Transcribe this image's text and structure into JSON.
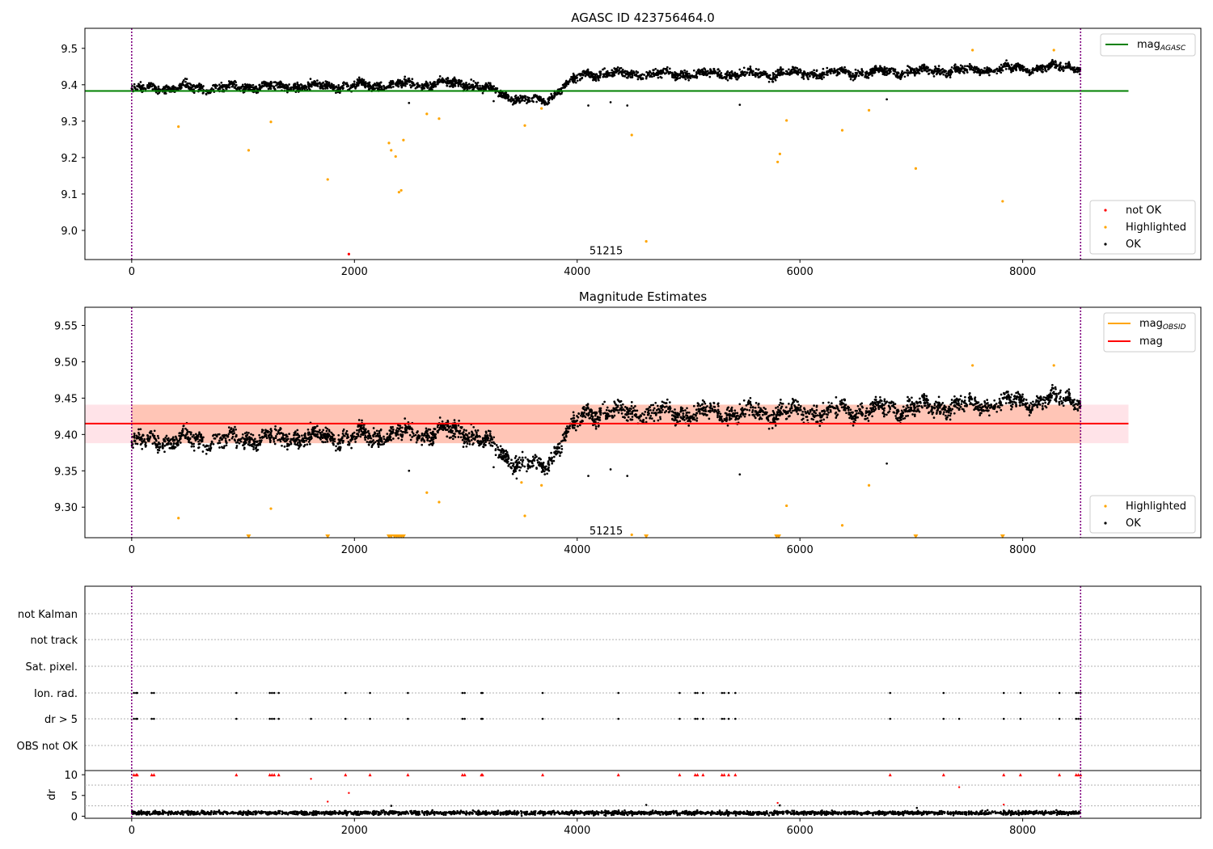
{
  "figure": {
    "background": "#ffffff"
  },
  "chart_data": [
    {
      "type": "scatter",
      "title": "AGASC ID 423756464.0",
      "xlim": [
        -420,
        9600
      ],
      "ylim": [
        8.92,
        9.555
      ],
      "xticks": [
        0,
        2000,
        4000,
        6000,
        8000
      ],
      "yticks": [
        9.0,
        9.1,
        9.2,
        9.3,
        9.4,
        9.5
      ],
      "ytick_labels": [
        "9.0",
        "9.1",
        "9.2",
        "9.3",
        "9.4",
        "9.5"
      ],
      "vlines": [
        0,
        8520
      ],
      "obsid_label": {
        "text": "51215",
        "x": 4260,
        "y": 8.945
      },
      "hline": {
        "name": "mag",
        "subscript": "AGASC",
        "y": 9.383,
        "x_range": [
          -420,
          8950
        ],
        "color": "#008000"
      },
      "series": [
        {
          "name": "OK",
          "color": "#000000",
          "trend": [
            [
              0,
              9.39
            ],
            [
              2000,
              9.397
            ],
            [
              3000,
              9.405
            ],
            [
              3500,
              9.36
            ],
            [
              3700,
              9.355
            ],
            [
              3900,
              9.4
            ],
            [
              4100,
              9.43
            ],
            [
              6000,
              9.43
            ],
            [
              7500,
              9.44
            ],
            [
              8500,
              9.45
            ]
          ],
          "spread": 0.011
        },
        {
          "name": "Highlighted",
          "color": "#ffa500",
          "points": [
            [
              420,
              9.285
            ],
            [
              1050,
              9.22
            ],
            [
              1250,
              9.298
            ],
            [
              1760,
              9.14
            ],
            [
              2310,
              9.24
            ],
            [
              2330,
              9.22
            ],
            [
              2370,
              9.203
            ],
            [
              2400,
              9.105
            ],
            [
              2420,
              9.11
            ],
            [
              2440,
              9.248
            ],
            [
              2650,
              9.32
            ],
            [
              2760,
              9.307
            ],
            [
              3530,
              9.288
            ],
            [
              3680,
              9.335
            ],
            [
              4490,
              9.262
            ],
            [
              4620,
              8.97
            ],
            [
              5800,
              9.188
            ],
            [
              5820,
              9.21
            ],
            [
              5880,
              9.302
            ],
            [
              6380,
              9.275
            ],
            [
              6620,
              9.33
            ],
            [
              7040,
              9.17
            ],
            [
              7550,
              9.495
            ],
            [
              7820,
              9.08
            ],
            [
              8280,
              9.495
            ]
          ]
        },
        {
          "name": "not OK",
          "color": "#ff0000",
          "points": [
            [
              1950,
              8.935
            ]
          ]
        }
      ],
      "outliers_ok": [
        [
          4100,
          9.343
        ],
        [
          4300,
          9.352
        ],
        [
          4450,
          9.343
        ],
        [
          5460,
          9.345
        ],
        [
          6780,
          9.36
        ],
        [
          2490,
          9.35
        ],
        [
          3250,
          9.355
        ]
      ],
      "legend_top": [
        {
          "label": "mag",
          "subscript": "AGASC",
          "color": "#008000"
        }
      ],
      "legend_bottom": [
        {
          "label": "not OK",
          "color": "#ff0000"
        },
        {
          "label": "Highlighted",
          "color": "#ffa500"
        },
        {
          "label": "OK",
          "color": "#000000"
        }
      ]
    },
    {
      "type": "scatter",
      "title": "Magnitude Estimates",
      "xlim": [
        -420,
        9600
      ],
      "ylim": [
        9.258,
        9.575
      ],
      "xticks": [
        0,
        2000,
        4000,
        6000,
        8000
      ],
      "yticks": [
        9.3,
        9.35,
        9.4,
        9.45,
        9.5,
        9.55
      ],
      "ytick_labels": [
        "9.30",
        "9.35",
        "9.40",
        "9.45",
        "9.50",
        "9.55"
      ],
      "vlines": [
        0,
        8520
      ],
      "obsid_label": {
        "text": "51215",
        "x": 4260,
        "y": 9.268
      },
      "band": {
        "y_range": [
          9.388,
          9.441
        ],
        "x_range": [
          -420,
          8950
        ],
        "color": "#ffc0cb"
      },
      "band_obsid": {
        "y_range": [
          9.388,
          9.441
        ],
        "x_range": [
          0,
          8520
        ],
        "color": "#ffa07a"
      },
      "hline_mag": {
        "name": "mag",
        "y": 9.415,
        "x_range": [
          -420,
          8950
        ],
        "color": "#ff0000"
      },
      "series": [
        {
          "name": "OK",
          "color": "#000000",
          "trend": [
            [
              0,
              9.39
            ],
            [
              2000,
              9.397
            ],
            [
              3000,
              9.405
            ],
            [
              3500,
              9.36
            ],
            [
              3700,
              9.355
            ],
            [
              3900,
              9.4
            ],
            [
              4100,
              9.43
            ],
            [
              6000,
              9.43
            ],
            [
              7500,
              9.44
            ],
            [
              8500,
              9.45
            ]
          ],
          "spread": 0.011
        },
        {
          "name": "Highlighted",
          "color": "#ffa500",
          "points": [
            [
              420,
              9.285
            ],
            [
              1250,
              9.298
            ],
            [
              2650,
              9.32
            ],
            [
              2760,
              9.307
            ],
            [
              3500,
              9.334
            ],
            [
              3530,
              9.288
            ],
            [
              3680,
              9.33
            ],
            [
              4490,
              9.262
            ],
            [
              5880,
              9.302
            ],
            [
              6380,
              9.275
            ],
            [
              6620,
              9.33
            ],
            [
              7550,
              9.495
            ],
            [
              8280,
              9.495
            ]
          ]
        }
      ],
      "outliers_ok": [
        [
          4100,
          9.343
        ],
        [
          4300,
          9.352
        ],
        [
          4450,
          9.343
        ],
        [
          5460,
          9.345
        ],
        [
          6780,
          9.36
        ],
        [
          2490,
          9.35
        ],
        [
          3250,
          9.355
        ]
      ],
      "clipped_markers": {
        "color": "#ffa500",
        "x": [
          1050,
          1760,
          2310,
          2330,
          2360,
          2380,
          2400,
          2420,
          2440,
          4620,
          5790,
          5810,
          7040,
          7820
        ]
      },
      "legend_top": [
        {
          "label": "mag",
          "subscript": "OBSID",
          "color": "#ffa500"
        },
        {
          "label": "mag",
          "subscript": "",
          "color": "#ff0000"
        }
      ],
      "legend_bottom": [
        {
          "label": "Highlighted",
          "color": "#ffa500"
        },
        {
          "label": "OK",
          "color": "#000000"
        }
      ]
    },
    {
      "type": "scatter",
      "title": "",
      "xlim": [
        -420,
        9600
      ],
      "flag_rows": [
        "not Kalman",
        "not track",
        "Sat. pixel.",
        "Ion. rad.",
        "dr > 5",
        "OBS not OK"
      ],
      "flag_events_x": [
        20,
        40,
        50,
        180,
        200,
        940,
        1240,
        1260,
        1280,
        1320,
        1920,
        2140,
        2480,
        2970,
        2990,
        3140,
        3150,
        3690,
        4370,
        4920,
        5060,
        5080,
        5130,
        5300,
        5320,
        5360,
        5420,
        6810,
        7290,
        7830,
        7980,
        8330,
        8480,
        8500,
        8520
      ],
      "dr_extra_x": [
        1610,
        7430
      ],
      "dr": {
        "ylabel": "dr",
        "ylim": [
          -0.5,
          11
        ],
        "yticks": [
          0,
          5,
          10
        ],
        "ytick_labels": [
          "0",
          "5",
          "10"
        ],
        "baseline_mean": 0.8,
        "red_points": [
          [
            1610,
            9.0
          ],
          [
            1760,
            3.5
          ],
          [
            1950,
            5.6
          ],
          [
            5800,
            3.2
          ],
          [
            7430,
            7.0
          ],
          [
            7830,
            2.8
          ]
        ],
        "black_outliers": [
          [
            2330,
            2.5
          ],
          [
            4620,
            2.7
          ],
          [
            5820,
            2.6
          ],
          [
            7050,
            2.0
          ]
        ]
      },
      "vlines": [
        0,
        8520
      ],
      "xticks": [
        0,
        2000,
        4000,
        6000,
        8000
      ]
    }
  ]
}
